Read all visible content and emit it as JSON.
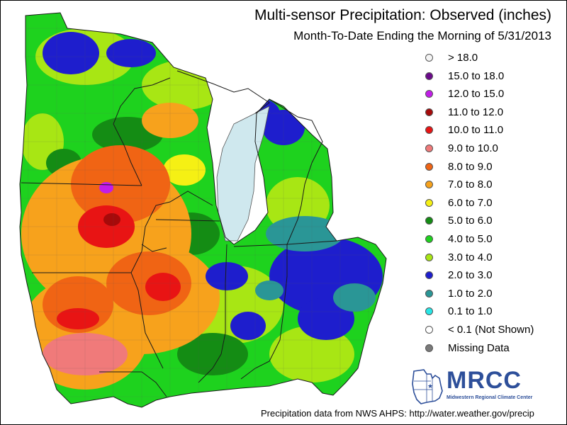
{
  "title": "Multi-sensor Precipitation:  Observed (inches)",
  "subtitle": "Month-To-Date Ending the Morning of 5/31/2013",
  "legend": [
    {
      "label": "> 18.0",
      "color": "#f4f4f4"
    },
    {
      "label": "15.0 to 18.0",
      "color": "#6a0a8a"
    },
    {
      "label": "12.0 to 15.0",
      "color": "#c21de8"
    },
    {
      "label": "11.0 to 12.0",
      "color": "#a60a0a"
    },
    {
      "label": "10.0 to 11.0",
      "color": "#e81414"
    },
    {
      "label": "9.0 to 10.0",
      "color": "#f07a7a"
    },
    {
      "label": "8.0 to 9.0",
      "color": "#f06414"
    },
    {
      "label": "7.0 to 8.0",
      "color": "#f7a21c"
    },
    {
      "label": "6.0 to 7.0",
      "color": "#f5f014"
    },
    {
      "label": "5.0 to 6.0",
      "color": "#148c14"
    },
    {
      "label": "4.0 to 5.0",
      "color": "#1ed21e"
    },
    {
      "label": "3.0 to 4.0",
      "color": "#a8e614"
    },
    {
      "label": "2.0 to 3.0",
      "color": "#1e1ecd"
    },
    {
      "label": "1.0 to 2.0",
      "color": "#2a9696"
    },
    {
      "label": "0.1 to 1.0",
      "color": "#28e6e6"
    },
    {
      "label": "< 0.1 (Not Shown)",
      "color": "#ffffff"
    },
    {
      "label": "Missing Data",
      "color": "#7a7a7a"
    }
  ],
  "logo": {
    "text": "MRCC",
    "subtext": "Midwestern Regional Climate Center"
  },
  "footer": "Precipitation data from NWS AHPS:  http://water.weather.gov/precip",
  "map": {
    "region": "Midwest US",
    "dominant_colors": {
      "green": "#1ed21e",
      "dark_green": "#148c14",
      "lime": "#a8e614",
      "orange": "#f7a21c",
      "dark_orange": "#f06414",
      "red": "#e81414",
      "blue": "#1e1ecd",
      "teal": "#2a9696",
      "lake_water": "#cfe8ee",
      "border": "#1a1a1a"
    }
  }
}
